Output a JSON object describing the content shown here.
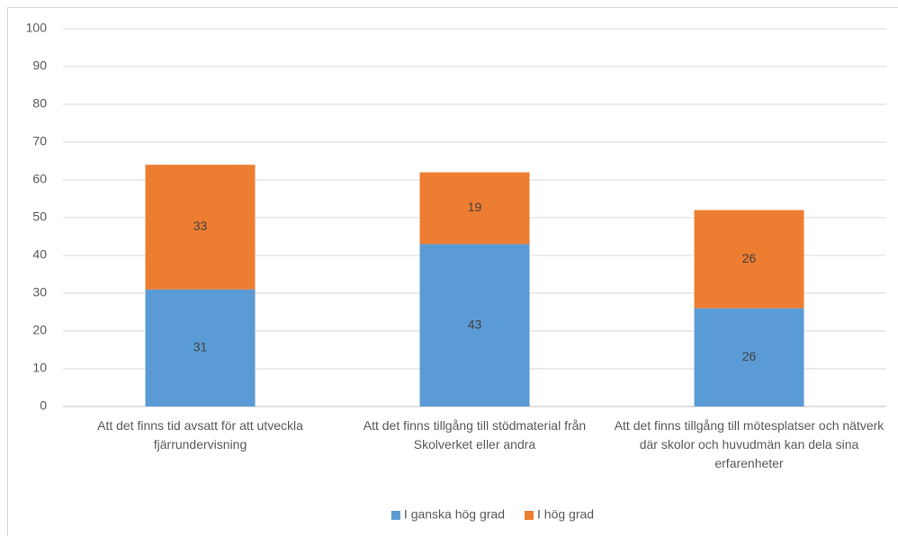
{
  "chart_data": {
    "type": "stacked_bar",
    "categories": [
      "Att det finns tid avsatt för att utveckla fjärrundervisning",
      "Att det finns tillgång till stödmaterial från Skolverket eller andra",
      "Att det finns tillgång till mötesplatser och nätverk där skolor och huvudmän kan dela sina erfarenheter"
    ],
    "series": [
      {
        "name": "I ganska hög grad",
        "color": "#5b9bd5",
        "values": [
          31,
          43,
          26
        ]
      },
      {
        "name": "I hög grad",
        "color": "#ed7d31",
        "values": [
          33,
          19,
          26
        ]
      }
    ],
    "ylim": [
      0,
      100
    ],
    "yticks": [
      0,
      10,
      20,
      30,
      40,
      50,
      60,
      70,
      80,
      90,
      100
    ],
    "grid": true,
    "legend": "bottom",
    "data_labels": true
  }
}
